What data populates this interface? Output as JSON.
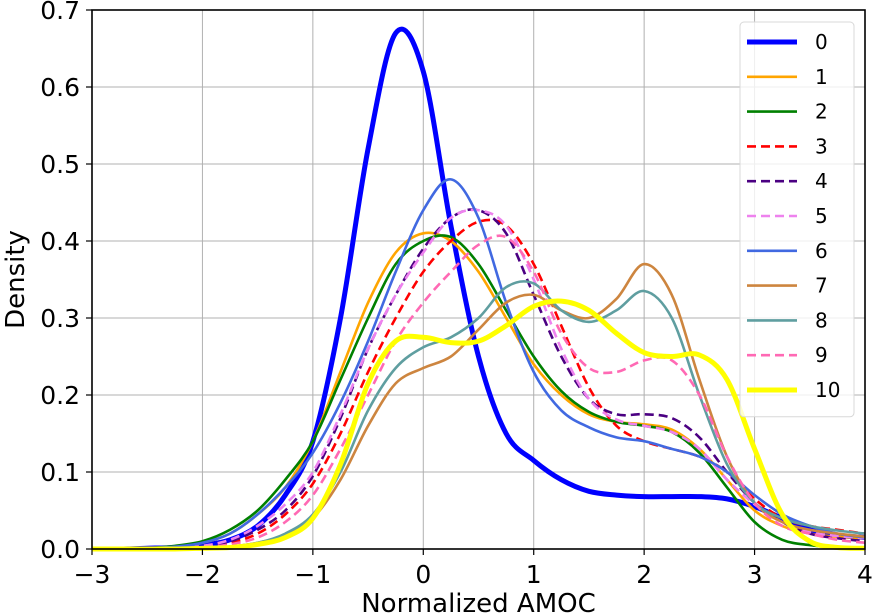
{
  "chart_data": {
    "type": "line",
    "title": "",
    "xlabel": "Normalized AMOC",
    "ylabel": "Density",
    "xlim": [
      -3,
      4
    ],
    "ylim": [
      0,
      0.7
    ],
    "xticks": [
      -3,
      -2,
      -1,
      0,
      1,
      2,
      3,
      4
    ],
    "xtick_labels": [
      "−3",
      "−2",
      "−1",
      "0",
      "1",
      "2",
      "3",
      "4"
    ],
    "yticks": [
      0,
      0.1,
      0.2,
      0.3,
      0.4,
      0.5,
      0.6,
      0.7
    ],
    "ytick_labels": [
      "0.0",
      "0.1",
      "0.2",
      "0.3",
      "0.4",
      "0.5",
      "0.6",
      "0.7"
    ],
    "grid": true,
    "legend_position": "top-right",
    "x": [
      -3,
      -2.75,
      -2.5,
      -2.25,
      -2,
      -1.75,
      -1.5,
      -1.25,
      -1,
      -0.75,
      -0.5,
      -0.25,
      0,
      0.25,
      0.5,
      0.75,
      1,
      1.25,
      1.5,
      1.75,
      2,
      2.25,
      2.5,
      2.75,
      3,
      3.25,
      3.5,
      3.75,
      4
    ],
    "series": [
      {
        "name": "0",
        "color": "#0000ff",
        "style": "solid",
        "weight": "thick",
        "values": [
          0,
          0,
          0.001,
          0.002,
          0.005,
          0.012,
          0.03,
          0.07,
          0.14,
          0.3,
          0.52,
          0.67,
          0.62,
          0.42,
          0.25,
          0.15,
          0.115,
          0.09,
          0.075,
          0.07,
          0.068,
          0.068,
          0.068,
          0.065,
          0.055,
          0.04,
          0.025,
          0.018,
          0.015
        ]
      },
      {
        "name": "1",
        "color": "#ffa500",
        "style": "solid",
        "weight": "normal",
        "values": [
          0,
          0,
          0.001,
          0.003,
          0.008,
          0.02,
          0.045,
          0.08,
          0.14,
          0.23,
          0.32,
          0.385,
          0.41,
          0.4,
          0.36,
          0.3,
          0.24,
          0.2,
          0.175,
          0.165,
          0.162,
          0.155,
          0.13,
          0.09,
          0.05,
          0.03,
          0.02,
          0.016,
          0.014
        ]
      },
      {
        "name": "2",
        "color": "#008000",
        "style": "solid",
        "weight": "normal",
        "values": [
          0,
          0,
          0.001,
          0.004,
          0.01,
          0.025,
          0.05,
          0.09,
          0.14,
          0.22,
          0.3,
          0.37,
          0.4,
          0.405,
          0.37,
          0.31,
          0.25,
          0.205,
          0.178,
          0.165,
          0.16,
          0.152,
          0.125,
          0.08,
          0.035,
          0.012,
          0.005,
          0.002,
          0.001
        ]
      },
      {
        "name": "3",
        "color": "#ff0000",
        "style": "dashed",
        "weight": "normal",
        "values": [
          0,
          0,
          0,
          0.001,
          0.003,
          0.008,
          0.02,
          0.045,
          0.085,
          0.15,
          0.23,
          0.3,
          0.36,
          0.4,
          0.425,
          0.42,
          0.37,
          0.29,
          0.21,
          0.16,
          0.14,
          0.13,
          0.12,
          0.1,
          0.065,
          0.04,
          0.03,
          0.025,
          0.02
        ]
      },
      {
        "name": "4",
        "color": "#4b0082",
        "style": "dashed",
        "weight": "normal",
        "values": [
          0,
          0,
          0,
          0.001,
          0.004,
          0.01,
          0.025,
          0.05,
          0.095,
          0.17,
          0.26,
          0.33,
          0.39,
          0.43,
          0.44,
          0.41,
          0.33,
          0.25,
          0.195,
          0.175,
          0.175,
          0.17,
          0.145,
          0.1,
          0.06,
          0.035,
          0.02,
          0.014,
          0.01
        ]
      },
      {
        "name": "5",
        "color": "#ee82ee",
        "style": "dashed",
        "weight": "normal",
        "values": [
          0,
          0,
          0,
          0.001,
          0.004,
          0.012,
          0.03,
          0.058,
          0.1,
          0.175,
          0.26,
          0.33,
          0.385,
          0.43,
          0.44,
          0.42,
          0.35,
          0.26,
          0.195,
          0.168,
          0.16,
          0.152,
          0.13,
          0.09,
          0.058,
          0.035,
          0.022,
          0.017,
          0.014
        ]
      },
      {
        "name": "6",
        "color": "#4169e1",
        "style": "solid",
        "weight": "normal",
        "values": [
          0,
          0,
          0.001,
          0.003,
          0.008,
          0.02,
          0.045,
          0.08,
          0.125,
          0.19,
          0.27,
          0.36,
          0.44,
          0.48,
          0.43,
          0.32,
          0.23,
          0.18,
          0.158,
          0.145,
          0.14,
          0.13,
          0.12,
          0.1,
          0.07,
          0.045,
          0.03,
          0.02,
          0.015
        ]
      },
      {
        "name": "7",
        "color": "#cd853f",
        "style": "solid",
        "weight": "normal",
        "values": [
          0,
          0,
          0,
          0,
          0.001,
          0.003,
          0.008,
          0.018,
          0.04,
          0.09,
          0.16,
          0.215,
          0.235,
          0.25,
          0.285,
          0.32,
          0.33,
          0.31,
          0.3,
          0.325,
          0.37,
          0.33,
          0.22,
          0.12,
          0.06,
          0.035,
          0.025,
          0.02,
          0.016
        ]
      },
      {
        "name": "8",
        "color": "#5f9ea0",
        "style": "solid",
        "weight": "normal",
        "values": [
          0,
          0,
          0,
          0,
          0.001,
          0.003,
          0.008,
          0.02,
          0.045,
          0.1,
          0.18,
          0.235,
          0.262,
          0.275,
          0.3,
          0.34,
          0.345,
          0.31,
          0.295,
          0.31,
          0.335,
          0.3,
          0.2,
          0.11,
          0.06,
          0.04,
          0.03,
          0.024,
          0.02
        ]
      },
      {
        "name": "9",
        "color": "#ff69b4",
        "style": "dashed",
        "weight": "normal",
        "values": [
          0,
          0,
          0,
          0.001,
          0.002,
          0.006,
          0.015,
          0.035,
          0.07,
          0.13,
          0.2,
          0.27,
          0.32,
          0.36,
          0.395,
          0.405,
          0.36,
          0.28,
          0.235,
          0.23,
          0.245,
          0.245,
          0.2,
          0.12,
          0.06,
          0.03,
          0.02,
          0.012,
          0.008
        ]
      },
      {
        "name": "10",
        "color": "#ffff00",
        "style": "solid",
        "weight": "thick",
        "values": [
          0,
          0,
          0,
          0,
          0.001,
          0.002,
          0.006,
          0.015,
          0.04,
          0.11,
          0.215,
          0.27,
          0.275,
          0.268,
          0.27,
          0.29,
          0.315,
          0.322,
          0.31,
          0.28,
          0.255,
          0.25,
          0.252,
          0.22,
          0.13,
          0.045,
          0.01,
          0.002,
          0.001
        ]
      }
    ]
  }
}
